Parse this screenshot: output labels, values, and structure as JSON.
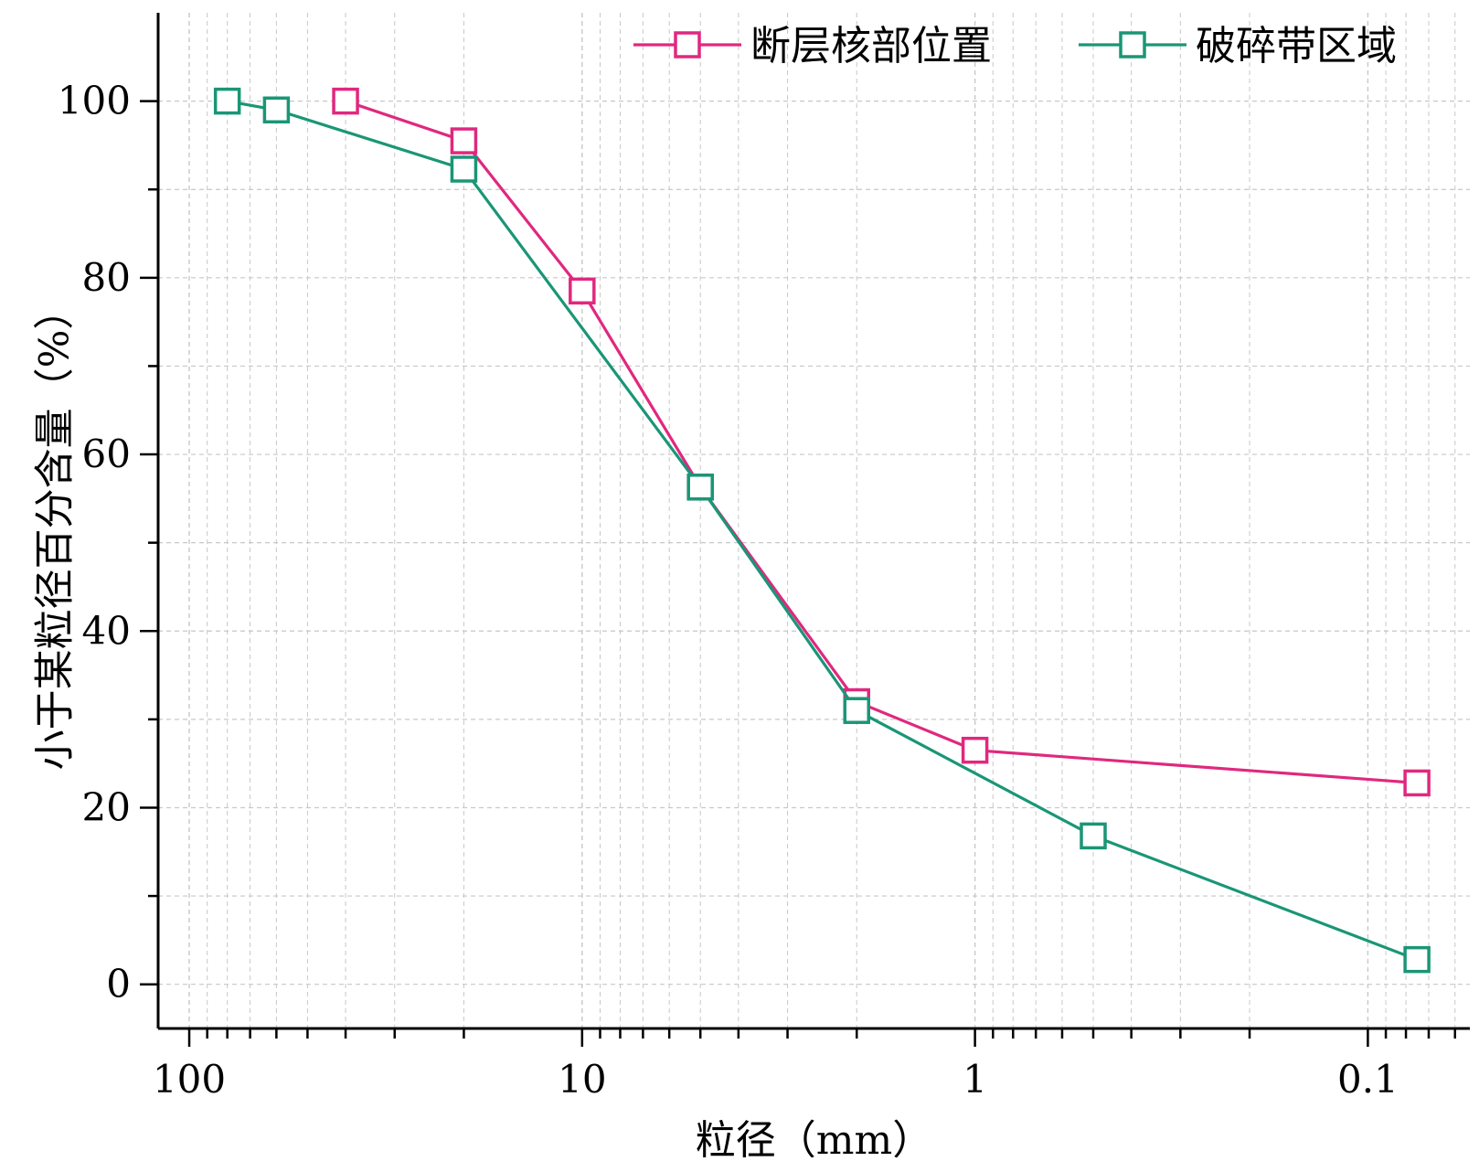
{
  "chart_data": {
    "type": "line",
    "xlabel": "粒径（mm）",
    "ylabel": "小于某粒径百分含量（%）",
    "x_scale": "log",
    "x_reversed": true,
    "xlim": [
      120,
      0.055
    ],
    "ylim": [
      -5,
      110
    ],
    "x_ticks": [
      {
        "value": 100,
        "label": "100"
      },
      {
        "value": 10,
        "label": "10"
      },
      {
        "value": 1,
        "label": "1"
      },
      {
        "value": 0.1,
        "label": "0.1"
      }
    ],
    "y_ticks": [
      {
        "value": 0,
        "label": "0"
      },
      {
        "value": 20,
        "label": "20"
      },
      {
        "value": 40,
        "label": "40"
      },
      {
        "value": 60,
        "label": "60"
      },
      {
        "value": 80,
        "label": "80"
      },
      {
        "value": 100,
        "label": "100"
      }
    ],
    "grid": true,
    "legend_position": "top-right",
    "series": [
      {
        "name": "断层核部位置",
        "color": "#e0287f",
        "marker": "open-square",
        "x": [
          40,
          20,
          10,
          5,
          2,
          1,
          0.075
        ],
        "y": [
          100,
          95.5,
          78.5,
          56.3,
          32,
          26.5,
          22.8
        ]
      },
      {
        "name": "破碎带区域",
        "color": "#1a9676",
        "marker": "open-square",
        "x": [
          80,
          60,
          20,
          5,
          2,
          0.5,
          0.075
        ],
        "y": [
          100,
          99,
          92.3,
          56.3,
          31,
          16.8,
          2.8
        ]
      }
    ]
  }
}
